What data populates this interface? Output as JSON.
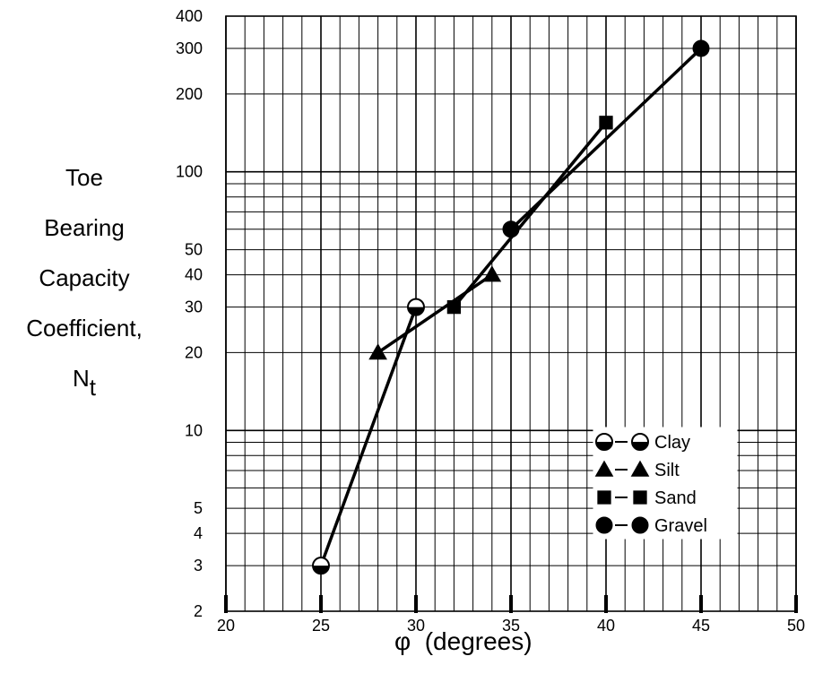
{
  "chart_data": {
    "type": "line",
    "ylabel_lines": [
      "Toe",
      "Bearing",
      "Capacity",
      "Coefficient,"
    ],
    "ylabel_symbol": "N",
    "ylabel_subscript": "t",
    "xlabel_symbol": "φ",
    "xlabel_text": "(degrees)",
    "xlim": [
      20,
      50
    ],
    "ylim": [
      2,
      400
    ],
    "y_scale": "log",
    "grid": true,
    "x_ticks": [
      20,
      25,
      30,
      35,
      40,
      45,
      50
    ],
    "y_ticks": [
      2,
      3,
      4,
      5,
      10,
      20,
      30,
      40,
      50,
      100,
      200,
      300,
      400
    ],
    "legend_position": "bottom-right",
    "series": [
      {
        "name": "Clay",
        "marker": "half-circle",
        "x": [
          25,
          30
        ],
        "y": [
          3,
          30
        ]
      },
      {
        "name": "Silt",
        "marker": "triangle",
        "x": [
          28,
          34
        ],
        "y": [
          20,
          40
        ]
      },
      {
        "name": "Sand",
        "marker": "square",
        "x": [
          32,
          40
        ],
        "y": [
          30,
          155
        ]
      },
      {
        "name": "Gravel",
        "marker": "circle",
        "x": [
          35,
          45
        ],
        "y": [
          60,
          300
        ]
      }
    ]
  }
}
